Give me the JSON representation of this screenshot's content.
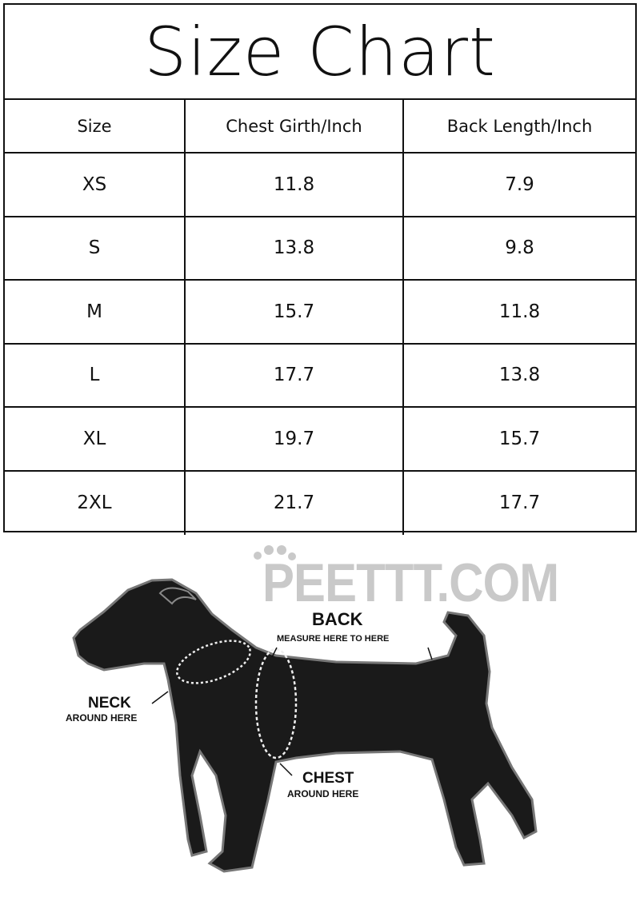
{
  "title": "Size Chart",
  "table": {
    "headers": [
      "Size",
      "Chest Girth/Inch",
      "Back Length/Inch"
    ],
    "rows": [
      [
        "XS",
        "11.8",
        "7.9"
      ],
      [
        "S",
        "13.8",
        "9.8"
      ],
      [
        "M",
        "15.7",
        "11.8"
      ],
      [
        "L",
        "17.7",
        "13.8"
      ],
      [
        "XL",
        "19.7",
        "15.7"
      ],
      [
        "2XL",
        "21.7",
        "17.7"
      ]
    ]
  },
  "figure": {
    "logo": "PEETTT.COM",
    "back_title": "BACK",
    "back_sub": "MEASURE HERE TO HERE",
    "neck_title": "NECK",
    "neck_sub": "AROUND HERE",
    "chest_title": "CHEST",
    "chest_sub": "AROUND HERE",
    "colors": {
      "dog": "#1a1a1a",
      "logo": "#c9c9c9"
    }
  }
}
